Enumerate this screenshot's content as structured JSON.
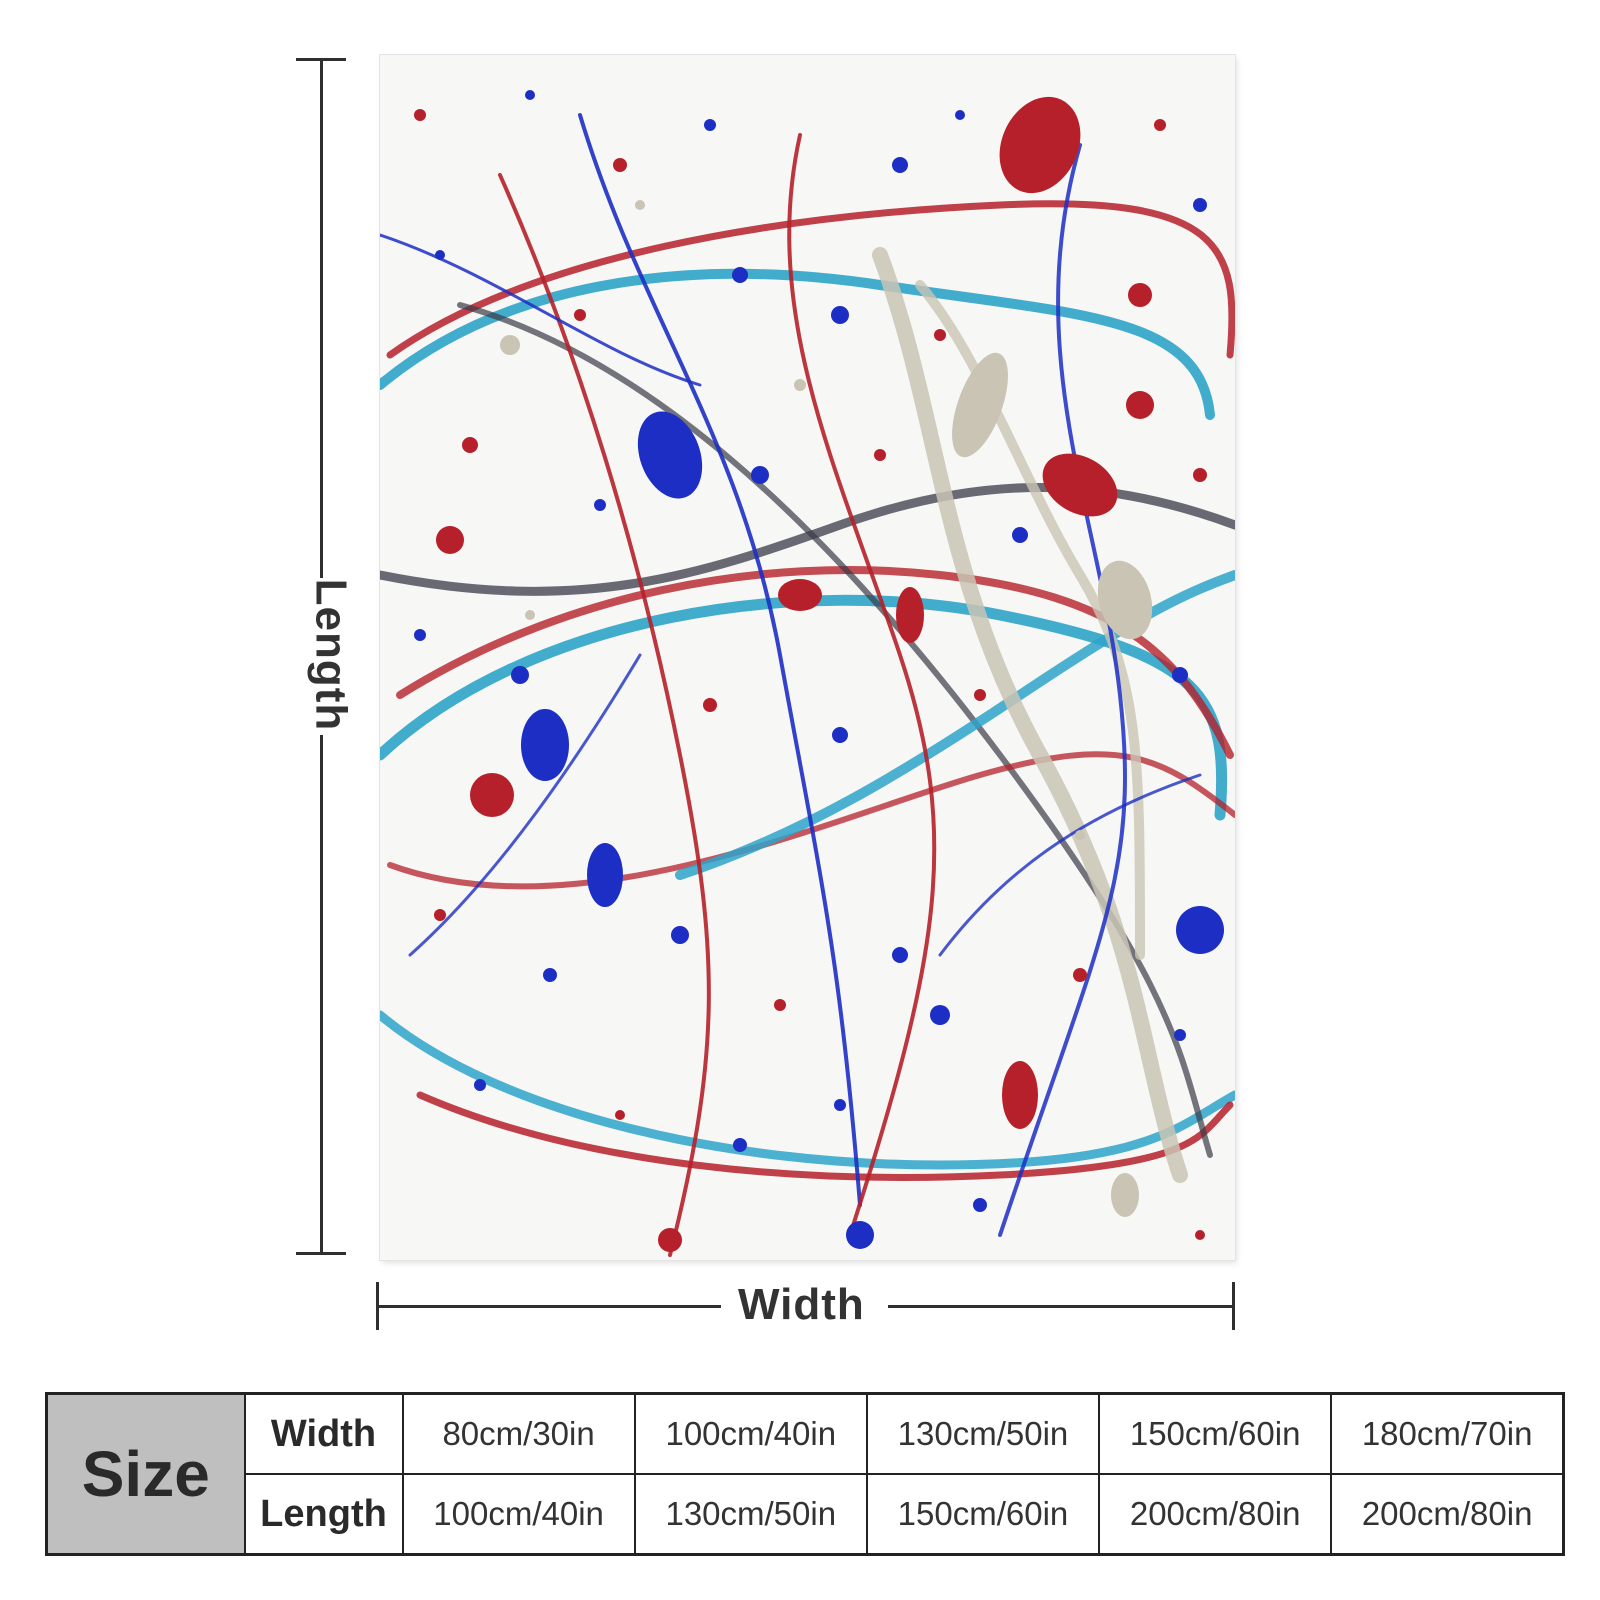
{
  "dimensions": {
    "length_label": "Length",
    "width_label": "Width"
  },
  "size_table": {
    "header": "Size",
    "rows": [
      {
        "label": "Width",
        "values": [
          "80cm/30in",
          "100cm/40in",
          "130cm/50in",
          "150cm/60in",
          "180cm/70in"
        ]
      },
      {
        "label": "Length",
        "values": [
          "100cm/40in",
          "130cm/50in",
          "150cm/60in",
          "200cm/80in",
          "200cm/80in"
        ]
      }
    ]
  },
  "colors": {
    "red": "#b5202a",
    "blue": "#1c2ec4",
    "cyan": "#2ea3c9",
    "silver": "#c9c4b4",
    "dark": "#3a3a48",
    "table_header_bg": "#bfbfbf"
  }
}
